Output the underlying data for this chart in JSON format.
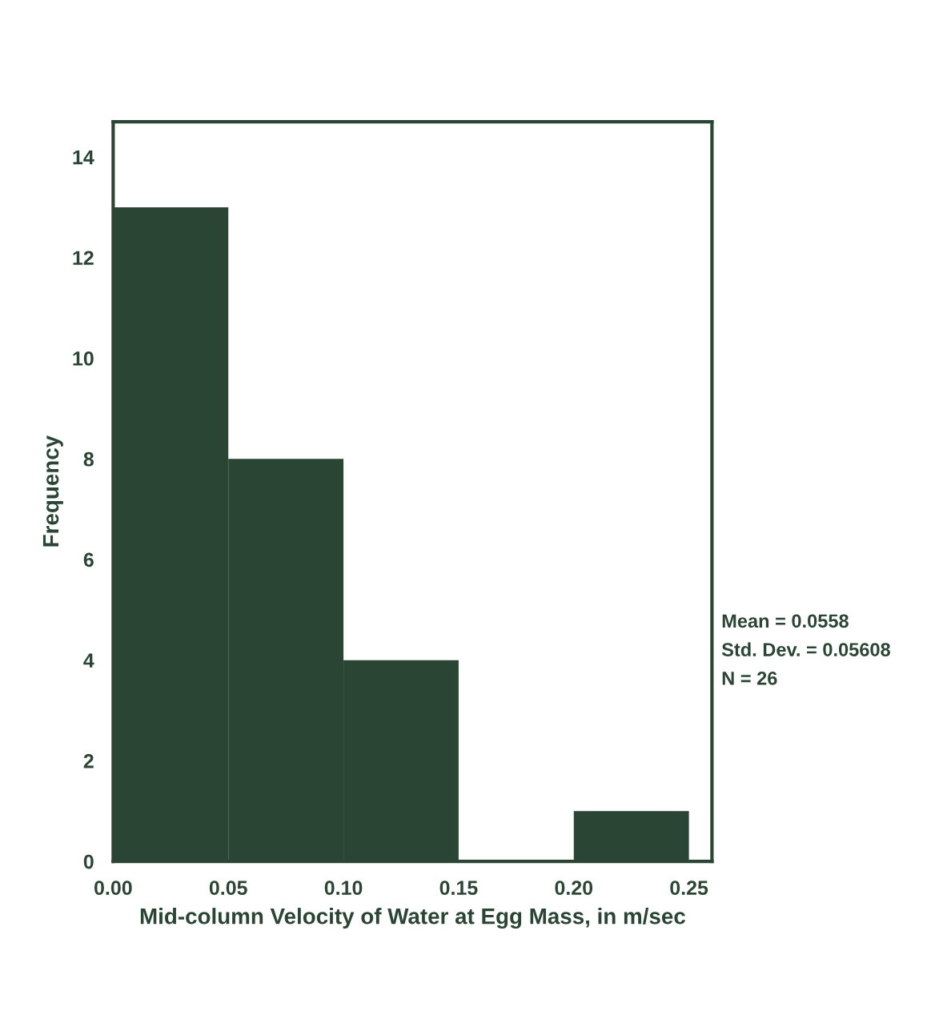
{
  "chart_data": {
    "type": "histogram",
    "xlabel": "Mid-column Velocity of Water at Egg Mass, in m/sec",
    "ylabel": "Frequency",
    "bins": [
      0,
      0.05,
      0.1,
      0.15,
      0.2,
      0.25
    ],
    "values": [
      13,
      8,
      4,
      0,
      1
    ],
    "color": "#2b4535",
    "xlim": [
      0,
      0.26
    ],
    "xticks": [
      {
        "value": 0,
        "label": "0.00"
      },
      {
        "value": 0.05,
        "label": "0.05"
      },
      {
        "value": 0.1,
        "label": "0.10"
      },
      {
        "value": 0.15,
        "label": "0.15"
      },
      {
        "value": 0.2,
        "label": "0.20"
      },
      {
        "value": 0.25,
        "label": "0.25"
      }
    ],
    "ylim": [
      0,
      14.7
    ],
    "yticks": [
      0,
      2,
      4,
      6,
      8,
      10,
      12,
      14
    ],
    "grid": false,
    "annotations": [
      "Mean = 0.0558",
      "Std. Dev. = 0.05608",
      "N = 26"
    ]
  }
}
